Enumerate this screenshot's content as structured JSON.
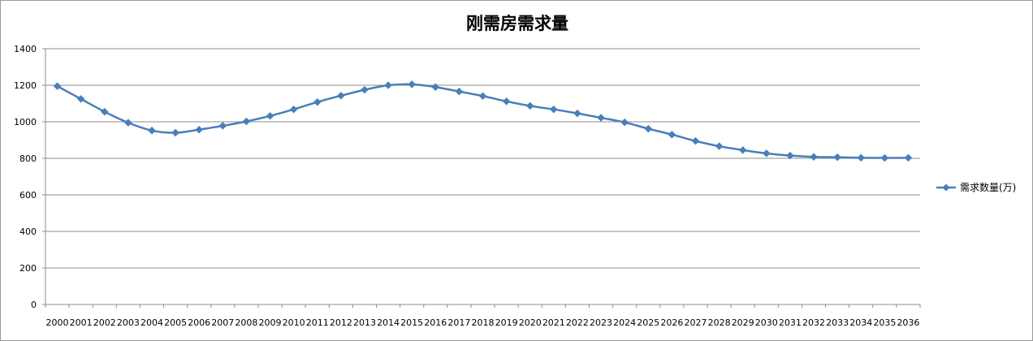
{
  "chart_data": {
    "type": "line",
    "title": "刚需房需求量",
    "xlabel": "",
    "ylabel": "",
    "ylim": [
      0,
      1400
    ],
    "yticks": [
      0,
      200,
      400,
      600,
      800,
      1000,
      1200,
      1400
    ],
    "grid": true,
    "legend_position": "right",
    "categories": [
      "2000",
      "2001",
      "2002",
      "2003",
      "2004",
      "2005",
      "2006",
      "2007",
      "2008",
      "2009",
      "2010",
      "2011",
      "2012",
      "2013",
      "2014",
      "2015",
      "2016",
      "2017",
      "2018",
      "2019",
      "2020",
      "2021",
      "2022",
      "2023",
      "2024",
      "2025",
      "2026",
      "2027",
      "2028",
      "2029",
      "2030",
      "2031",
      "2032",
      "2033",
      "2034",
      "2035",
      "2036"
    ],
    "series": [
      {
        "name": "需求数量(万)",
        "color": "#4a7ebb",
        "marker": "diamond",
        "values": [
          1195,
          1125,
          1055,
          995,
          952,
          940,
          957,
          978,
          1002,
          1032,
          1068,
          1108,
          1143,
          1175,
          1200,
          1205,
          1190,
          1166,
          1141,
          1112,
          1087,
          1068,
          1046,
          1022,
          997,
          962,
          930,
          895,
          866,
          845,
          827,
          815,
          808,
          806,
          803,
          802,
          803
        ]
      }
    ]
  }
}
